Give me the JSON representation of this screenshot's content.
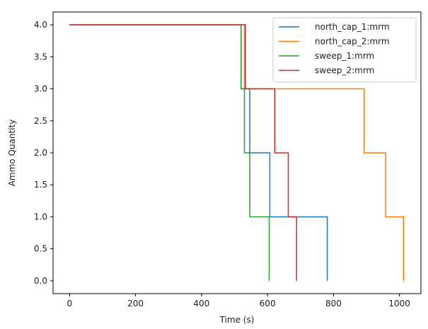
{
  "chart_data": {
    "type": "line",
    "step": "post",
    "xlabel": "Time (s)",
    "ylabel": "Ammo Quantity",
    "xlim": [
      -50,
      1065
    ],
    "ylim": [
      -0.2,
      4.2
    ],
    "xticks": [
      0,
      200,
      400,
      600,
      800,
      1000
    ],
    "yticks": [
      0.0,
      0.5,
      1.0,
      1.5,
      2.0,
      2.5,
      3.0,
      3.5,
      4.0
    ],
    "xtick_labels": [
      "0",
      "200",
      "400",
      "600",
      "800",
      "1000"
    ],
    "ytick_labels": [
      "0.0",
      "0.5",
      "1.0",
      "1.5",
      "2.0",
      "2.5",
      "3.0",
      "3.5",
      "4.0"
    ],
    "grid": false,
    "legend_position": "top-right",
    "series": [
      {
        "name": "north_cap_1:mrm",
        "color": "#1f77b4",
        "x": [
          0,
          520,
          530,
          546,
          607,
          781,
          781
        ],
        "y": [
          4,
          3,
          3,
          2,
          1,
          1,
          0
        ]
      },
      {
        "name": "north_cap_2:mrm",
        "color": "#ff7f0e",
        "x": [
          0,
          530,
          893,
          958,
          1012,
          1012
        ],
        "y": [
          4,
          3,
          2,
          1,
          1,
          0
        ]
      },
      {
        "name": "sweep_1:mrm",
        "color": "#2ca02c",
        "x": [
          0,
          520,
          530,
          546,
          605,
          605
        ],
        "y": [
          4,
          3,
          2,
          1,
          1,
          0
        ]
      },
      {
        "name": "sweep_2:mrm",
        "color": "#d62728",
        "x": [
          0,
          533,
          622,
          663,
          688,
          688
        ],
        "y": [
          4,
          3,
          2,
          1,
          1,
          0
        ]
      }
    ]
  }
}
